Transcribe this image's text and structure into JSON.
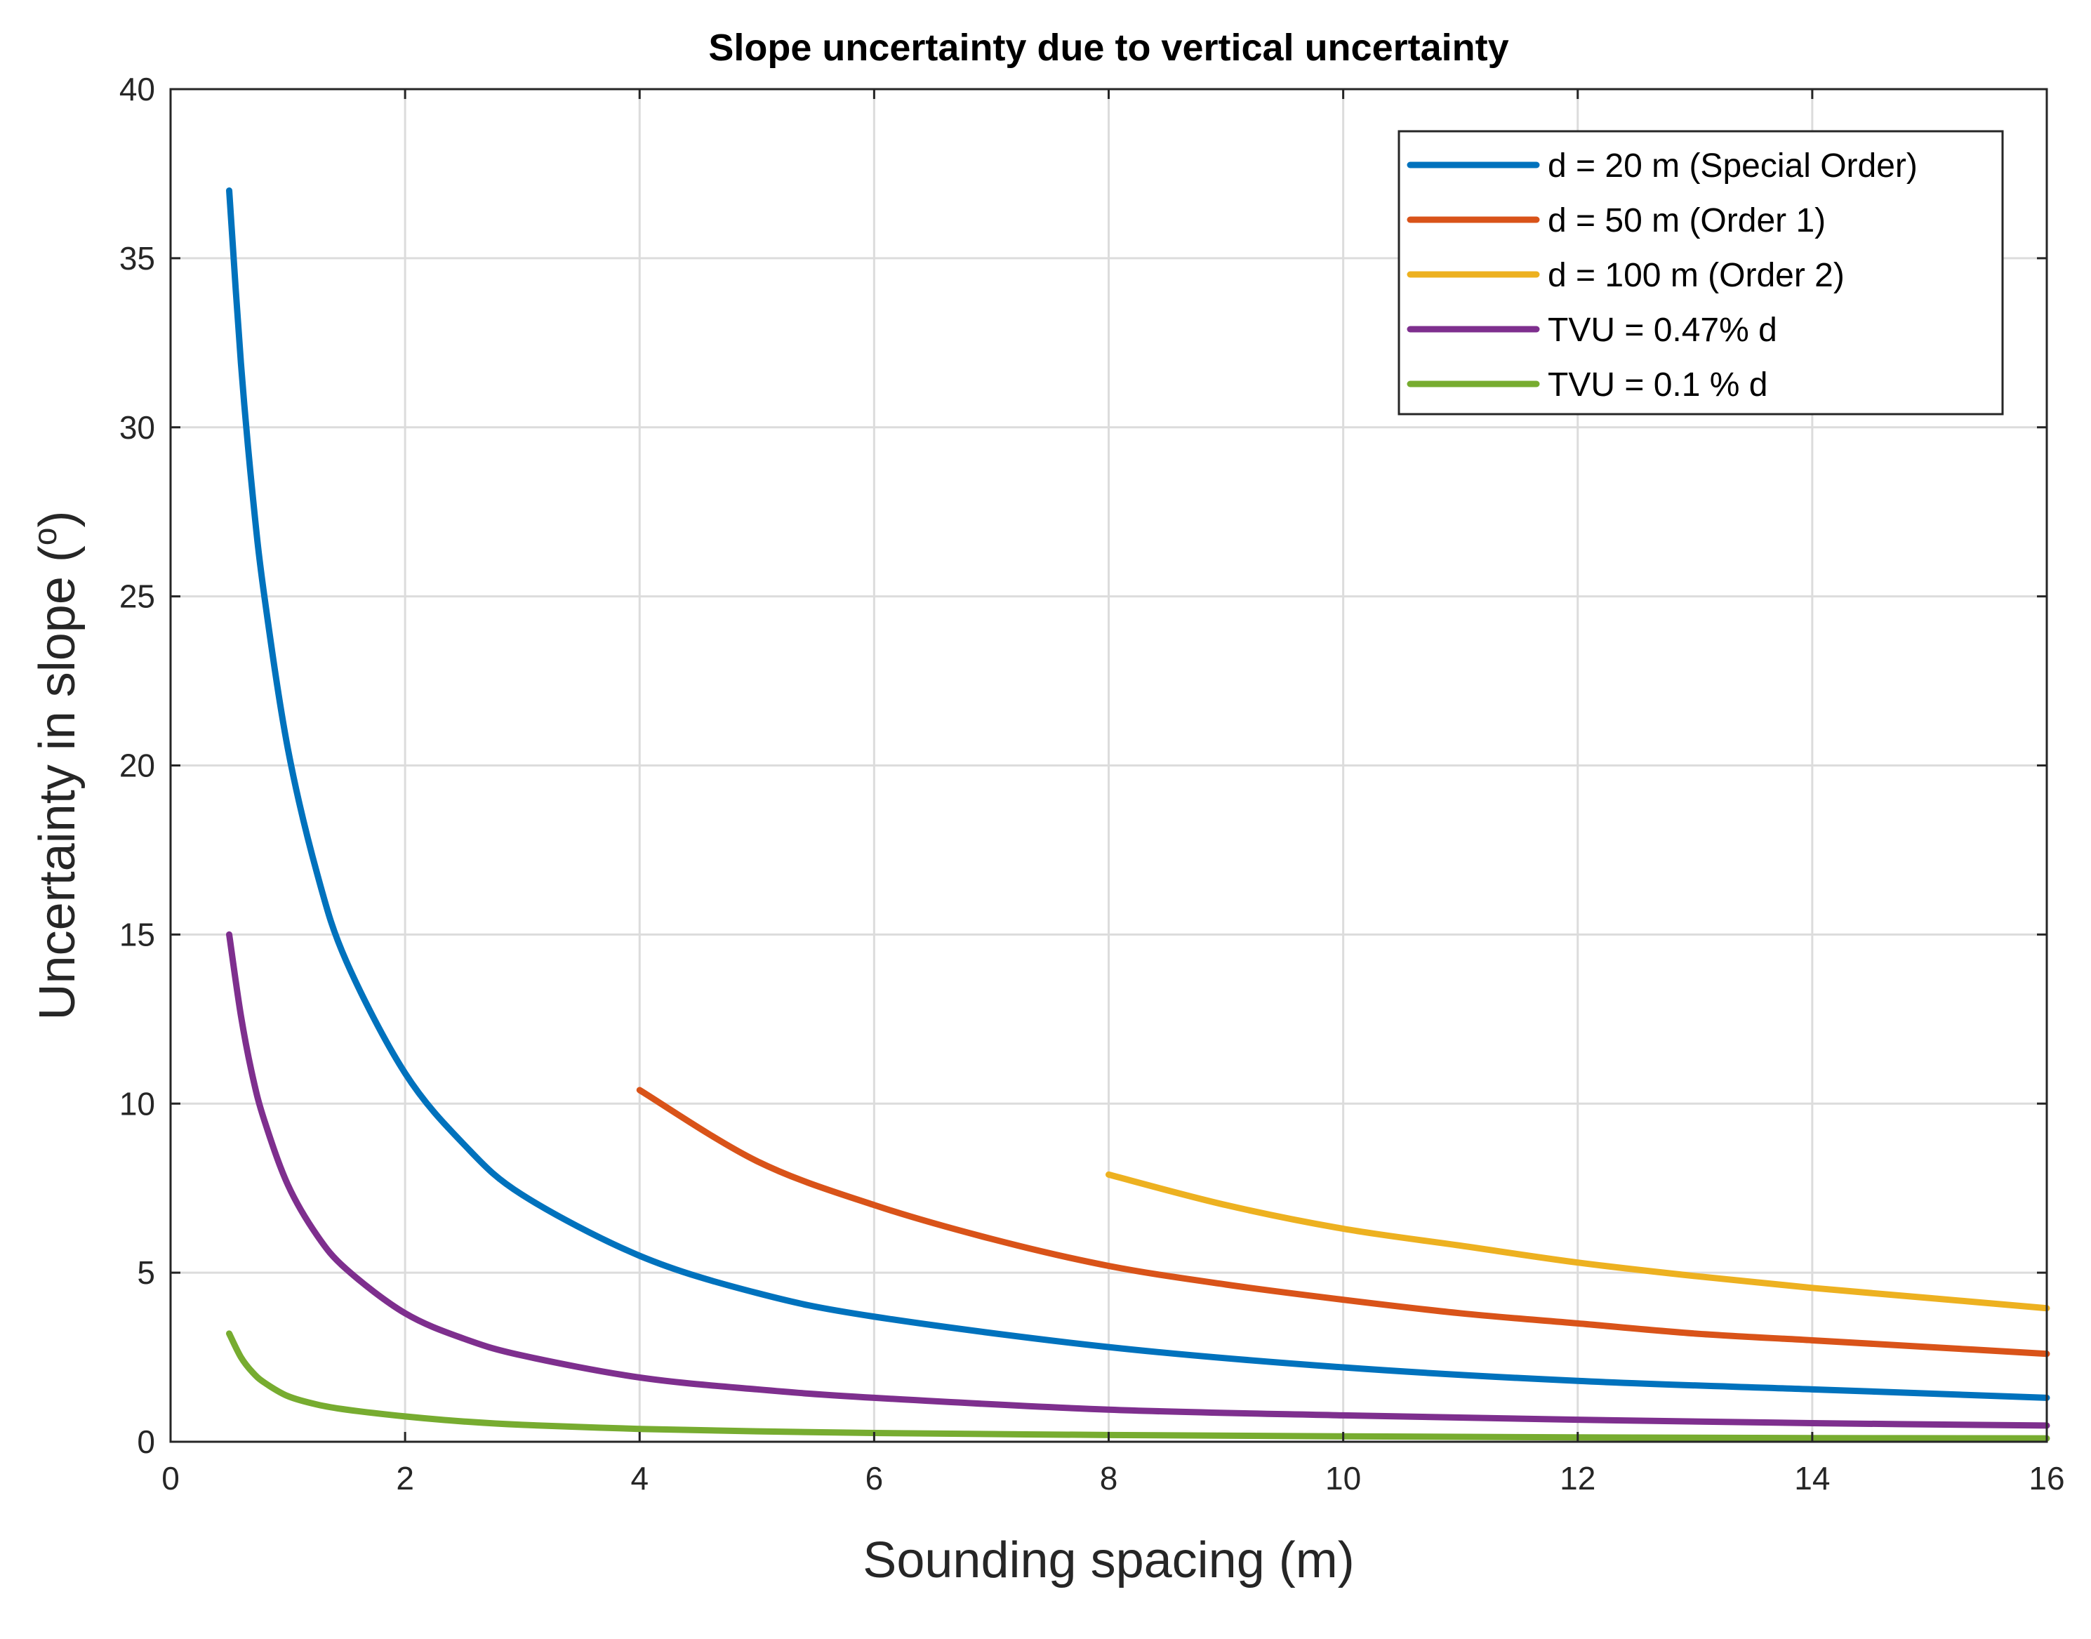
{
  "chart_data": {
    "type": "line",
    "title": "Slope uncertainty due to vertical uncertainty",
    "xlabel": "Sounding spacing (m)",
    "ylabel_main": "Uncertainty in slope (",
    "ylabel_super": "o",
    "ylabel_close": ")",
    "xlim": [
      0,
      16
    ],
    "ylim": [
      0,
      40
    ],
    "xticks": [
      0,
      2,
      4,
      6,
      8,
      10,
      12,
      14,
      16
    ],
    "yticks": [
      0,
      5,
      10,
      15,
      20,
      25,
      30,
      35,
      40
    ],
    "grid": true,
    "legend_position": "top-right",
    "series": [
      {
        "name": "d = 20 m (Special Order)",
        "color": "#0072BD",
        "x": [
          0.5,
          0.6,
          0.7,
          0.8,
          1.0,
          1.25,
          1.5,
          2.0,
          2.5,
          3.0,
          4.0,
          5.0,
          6.0,
          8.0,
          10.0,
          12.0,
          14.0,
          16.0
        ],
        "y": [
          37.0,
          31.9,
          28.0,
          25.0,
          20.5,
          16.8,
          14.2,
          10.9,
          8.8,
          7.3,
          5.5,
          4.4,
          3.7,
          2.8,
          2.2,
          1.8,
          1.55,
          1.3
        ]
      },
      {
        "name": "d = 50 m (Order 1)",
        "color": "#D95319",
        "x": [
          4.0,
          5.0,
          6.0,
          7.0,
          8.0,
          9.0,
          10.0,
          11.0,
          12.0,
          13.0,
          14.0,
          15.0,
          16.0
        ],
        "y": [
          10.4,
          8.3,
          7.0,
          6.0,
          5.2,
          4.65,
          4.2,
          3.8,
          3.5,
          3.2,
          3.0,
          2.8,
          2.6
        ]
      },
      {
        "name": "d = 100 m (Order 2)",
        "color": "#EDB120",
        "x": [
          8.0,
          9.0,
          10.0,
          11.0,
          12.0,
          13.0,
          14.0,
          15.0,
          16.0
        ],
        "y": [
          7.9,
          7.0,
          6.3,
          5.8,
          5.3,
          4.9,
          4.55,
          4.25,
          3.95
        ]
      },
      {
        "name": "TVU = 0.47% d",
        "color": "#7E2F8E",
        "x": [
          0.5,
          0.6,
          0.7,
          0.8,
          1.0,
          1.25,
          1.5,
          2.0,
          2.5,
          3.0,
          4.0,
          5.0,
          6.0,
          8.0,
          10.0,
          12.0,
          14.0,
          16.0
        ],
        "y": [
          15.0,
          12.6,
          10.8,
          9.5,
          7.6,
          6.1,
          5.1,
          3.8,
          3.05,
          2.55,
          1.9,
          1.55,
          1.3,
          0.95,
          0.78,
          0.65,
          0.55,
          0.48
        ]
      },
      {
        "name": "TVU = 0.1 % d",
        "color": "#77AC30",
        "x": [
          0.5,
          0.6,
          0.7,
          0.8,
          1.0,
          1.25,
          1.5,
          2.0,
          2.5,
          3.0,
          4.0,
          5.0,
          6.0,
          8.0,
          10.0,
          12.0,
          14.0,
          16.0
        ],
        "y": [
          3.2,
          2.5,
          2.05,
          1.75,
          1.35,
          1.1,
          0.95,
          0.75,
          0.6,
          0.5,
          0.38,
          0.31,
          0.26,
          0.2,
          0.16,
          0.13,
          0.11,
          0.1
        ]
      }
    ]
  }
}
